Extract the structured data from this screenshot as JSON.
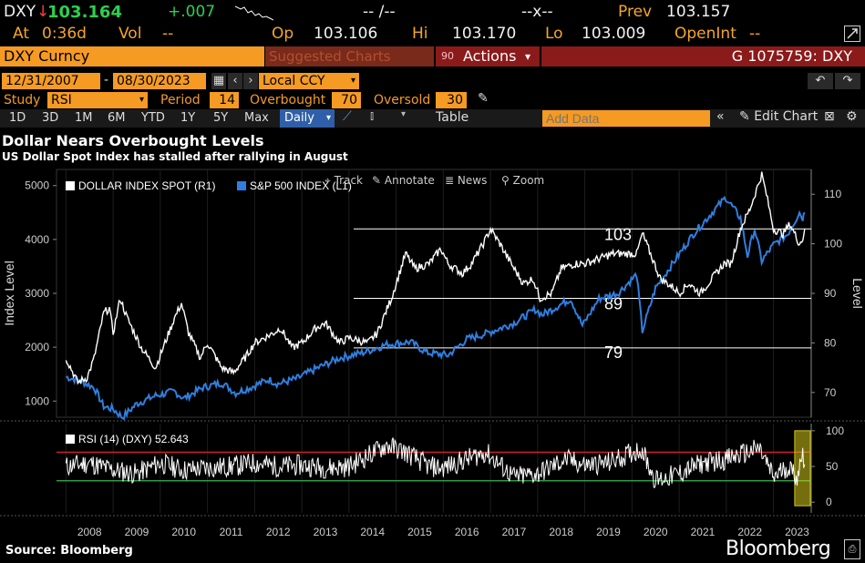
{
  "quote": {
    "ticker": "DXY",
    "arrow": "↓",
    "last": "103.164",
    "change": "+.007",
    "bidask_left": "-- /--",
    "bidask_right": "--x--",
    "prev_label": "Prev",
    "prev_value": "103.157",
    "at_label": "At",
    "at_value": "0:36d",
    "vol_label": "Vol",
    "vol_value": "--",
    "op_label": "Op",
    "op_value": "103.106",
    "hi_label": "Hi",
    "hi_value": "103.170",
    "lo_label": "Lo",
    "lo_value": "103.009",
    "openint_label": "OpenInt",
    "openint_value": "--"
  },
  "command": {
    "security": "DXY Curncy",
    "suggested": "Suggested Charts",
    "actions_code": "90",
    "actions": "Actions",
    "actions_caret": "▾",
    "page_id": "G 1075759: DXY"
  },
  "settings": {
    "start_date": "12/31/2007",
    "date_sep": "-",
    "end_date": "08/30/2023",
    "currency": "Local CCY",
    "study_label": "Study",
    "study_value": "RSI",
    "period_label": "Period",
    "period_value": "14",
    "overbought_label": "Overbought",
    "overbought_value": "70",
    "oversold_label": "Oversold",
    "oversold_value": "30"
  },
  "toolbar": {
    "timeframes": [
      "1D",
      "3D",
      "1M",
      "6M",
      "YTD",
      "1Y",
      "5Y",
      "Max"
    ],
    "frequency": "Daily",
    "table": "Table",
    "add_data_placeholder": "Add Data",
    "edit_chart": "Edit Chart",
    "collapse": "«"
  },
  "chart_tools": {
    "track": "Track",
    "annotate": "Annotate",
    "news": "News",
    "zoom": "Zoom"
  },
  "footer": {
    "source": "Source: Bloomberg",
    "brand": "Bloomberg"
  },
  "colors": {
    "dxy": "#ffffff",
    "spx": "#2f7fe0",
    "overbought": "#e02020",
    "oversold": "#39b54a",
    "highlight": "#d4c81a",
    "amber": "#f59a23"
  },
  "chart_data": [
    {
      "type": "line",
      "title": "Dollar Nears Overbought Levels",
      "subtitle": "US Dollar Spot Index has stalled after rallying in August",
      "ylabel_left": "Index Level",
      "ylabel_right": "Level",
      "x_ticks": [
        "2008",
        "2009",
        "2010",
        "2011",
        "2012",
        "2013",
        "2014",
        "2015",
        "2016",
        "2017",
        "2018",
        "2019",
        "2020",
        "2021",
        "2022",
        "2023"
      ],
      "y_left_ticks": [
        1000,
        2000,
        3000,
        4000,
        5000
      ],
      "y_left_range": [
        700,
        5300
      ],
      "y_right_ticks": [
        70,
        80,
        90,
        100,
        110
      ],
      "y_right_range": [
        65,
        115
      ],
      "legend": [
        "DOLLAR INDEX SPOT (R1)",
        "S&P 500 INDEX (L1)"
      ],
      "legend_placement": "top-left",
      "series": [
        {
          "name": "DOLLAR INDEX SPOT (R1)",
          "axis": "right",
          "points": [
            [
              2008.0,
              77
            ],
            [
              2008.25,
              72
            ],
            [
              2008.45,
              73
            ],
            [
              2008.6,
              77
            ],
            [
              2008.8,
              86
            ],
            [
              2008.92,
              87
            ],
            [
              2009.0,
              82
            ],
            [
              2009.15,
              89
            ],
            [
              2009.3,
              85
            ],
            [
              2009.6,
              79
            ],
            [
              2009.9,
              75
            ],
            [
              2010.1,
              80
            ],
            [
              2010.3,
              85
            ],
            [
              2010.45,
              88
            ],
            [
              2010.6,
              82
            ],
            [
              2010.85,
              77
            ],
            [
              2011.0,
              80
            ],
            [
              2011.3,
              75
            ],
            [
              2011.55,
              74
            ],
            [
              2011.8,
              77
            ],
            [
              2012.0,
              80
            ],
            [
              2012.4,
              82
            ],
            [
              2012.55,
              83
            ],
            [
              2012.8,
              79
            ],
            [
              2013.0,
              80
            ],
            [
              2013.3,
              83
            ],
            [
              2013.5,
              84
            ],
            [
              2013.8,
              80
            ],
            [
              2014.0,
              81
            ],
            [
              2014.4,
              80
            ],
            [
              2014.6,
              82
            ],
            [
              2014.9,
              89
            ],
            [
              2015.0,
              92
            ],
            [
              2015.2,
              98
            ],
            [
              2015.4,
              95
            ],
            [
              2015.7,
              96
            ],
            [
              2015.95,
              99
            ],
            [
              2016.1,
              96
            ],
            [
              2016.4,
              94
            ],
            [
              2016.6,
              96
            ],
            [
              2016.85,
              100
            ],
            [
              2017.0,
              103
            ],
            [
              2017.2,
              100
            ],
            [
              2017.5,
              95
            ],
            [
              2017.7,
              92
            ],
            [
              2017.9,
              93
            ],
            [
              2018.05,
              89
            ],
            [
              2018.3,
              90
            ],
            [
              2018.5,
              95
            ],
            [
              2018.8,
              96
            ],
            [
              2019.0,
              96
            ],
            [
              2019.3,
              97
            ],
            [
              2019.6,
              98
            ],
            [
              2019.9,
              98
            ],
            [
              2020.1,
              98
            ],
            [
              2020.22,
              102
            ],
            [
              2020.35,
              99
            ],
            [
              2020.6,
              93
            ],
            [
              2020.9,
              91
            ],
            [
              2021.0,
              90
            ],
            [
              2021.2,
              92
            ],
            [
              2021.45,
              90
            ],
            [
              2021.7,
              93
            ],
            [
              2021.95,
              96
            ],
            [
              2022.1,
              96
            ],
            [
              2022.3,
              103
            ],
            [
              2022.5,
              107
            ],
            [
              2022.75,
              114
            ],
            [
              2022.85,
              110
            ],
            [
              2023.0,
              103
            ],
            [
              2023.2,
              102
            ],
            [
              2023.35,
              104
            ],
            [
              2023.55,
              100
            ],
            [
              2023.62,
              101
            ],
            [
              2023.66,
              103
            ]
          ]
        },
        {
          "name": "S&P 500 INDEX (L1)",
          "axis": "left",
          "points": [
            [
              2008.0,
              1450
            ],
            [
              2008.3,
              1380
            ],
            [
              2008.6,
              1250
            ],
            [
              2008.8,
              900
            ],
            [
              2009.0,
              850
            ],
            [
              2009.2,
              700
            ],
            [
              2009.5,
              950
            ],
            [
              2009.9,
              1100
            ],
            [
              2010.3,
              1180
            ],
            [
              2010.5,
              1050
            ],
            [
              2010.9,
              1250
            ],
            [
              2011.3,
              1340
            ],
            [
              2011.6,
              1150
            ],
            [
              2011.9,
              1250
            ],
            [
              2012.3,
              1400
            ],
            [
              2012.5,
              1320
            ],
            [
              2012.9,
              1420
            ],
            [
              2013.3,
              1600
            ],
            [
              2013.8,
              1800
            ],
            [
              2014.3,
              1900
            ],
            [
              2014.8,
              2050
            ],
            [
              2015.3,
              2100
            ],
            [
              2015.65,
              1900
            ],
            [
              2016.1,
              1850
            ],
            [
              2016.5,
              2150
            ],
            [
              2016.9,
              2250
            ],
            [
              2017.5,
              2450
            ],
            [
              2017.95,
              2700
            ],
            [
              2018.1,
              2600
            ],
            [
              2018.7,
              2900
            ],
            [
              2018.95,
              2400
            ],
            [
              2019.3,
              2900
            ],
            [
              2019.7,
              3000
            ],
            [
              2020.1,
              3350
            ],
            [
              2020.22,
              2300
            ],
            [
              2020.5,
              3100
            ],
            [
              2020.9,
              3600
            ],
            [
              2021.3,
              4100
            ],
            [
              2021.7,
              4500
            ],
            [
              2021.99,
              4780
            ],
            [
              2022.3,
              4400
            ],
            [
              2022.45,
              3700
            ],
            [
              2022.6,
              4200
            ],
            [
              2022.75,
              3600
            ],
            [
              2023.0,
              3900
            ],
            [
              2023.3,
              4100
            ],
            [
              2023.55,
              4500
            ],
            [
              2023.62,
              4400
            ],
            [
              2023.66,
              4500
            ]
          ]
        }
      ],
      "reference_lines": [
        {
          "value": 103,
          "label": "103",
          "axis": "right"
        },
        {
          "value": 89,
          "label": "89",
          "axis": "right"
        },
        {
          "value": 79,
          "label": "79",
          "axis": "right"
        }
      ]
    },
    {
      "type": "line",
      "title": "RSI (14) (DXY)",
      "last_value": "52.643",
      "legend": [
        "RSI (14) (DXY) 52.643"
      ],
      "y_right_ticks": [
        0,
        50,
        100
      ],
      "y_range": [
        -15,
        110
      ],
      "overbought": 70,
      "oversold": 30,
      "series": [
        {
          "name": "RSI (14) (DXY)",
          "axis": "right",
          "points": [
            [
              2008.0,
              50
            ],
            [
              2008.5,
              55
            ],
            [
              2009.0,
              45
            ],
            [
              2009.5,
              40
            ],
            [
              2010.0,
              55
            ],
            [
              2010.5,
              45
            ],
            [
              2011.0,
              48
            ],
            [
              2011.5,
              50
            ],
            [
              2012.0,
              55
            ],
            [
              2012.5,
              50
            ],
            [
              2013.0,
              52
            ],
            [
              2013.5,
              48
            ],
            [
              2014.0,
              50
            ],
            [
              2014.8,
              80
            ],
            [
              2015.2,
              70
            ],
            [
              2015.7,
              50
            ],
            [
              2016.0,
              48
            ],
            [
              2016.9,
              70
            ],
            [
              2017.5,
              35
            ],
            [
              2018.0,
              40
            ],
            [
              2018.6,
              60
            ],
            [
              2019.0,
              52
            ],
            [
              2019.5,
              55
            ],
            [
              2020.2,
              75
            ],
            [
              2020.5,
              30
            ],
            [
              2021.0,
              40
            ],
            [
              2021.5,
              55
            ],
            [
              2022.0,
              60
            ],
            [
              2022.7,
              75
            ],
            [
              2023.0,
              35
            ],
            [
              2023.3,
              50
            ],
            [
              2023.5,
              35
            ],
            [
              2023.62,
              70
            ],
            [
              2023.66,
              53
            ]
          ]
        }
      ]
    }
  ]
}
